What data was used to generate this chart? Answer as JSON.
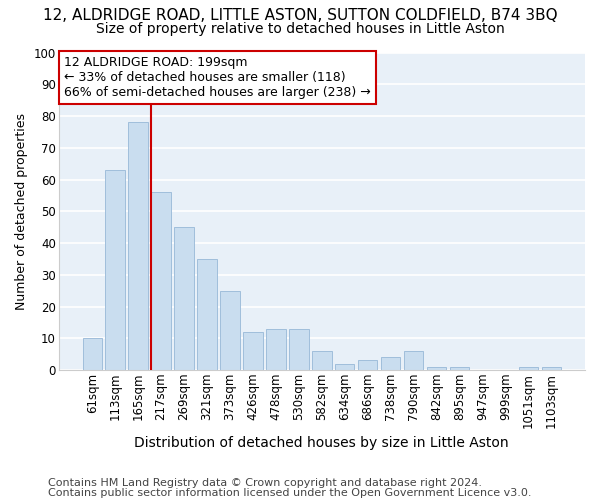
{
  "title": "12, ALDRIDGE ROAD, LITTLE ASTON, SUTTON COLDFIELD, B74 3BQ",
  "subtitle": "Size of property relative to detached houses in Little Aston",
  "xlabel": "Distribution of detached houses by size in Little Aston",
  "ylabel": "Number of detached properties",
  "bar_labels": [
    "61sqm",
    "113sqm",
    "165sqm",
    "217sqm",
    "269sqm",
    "321sqm",
    "373sqm",
    "426sqm",
    "478sqm",
    "530sqm",
    "582sqm",
    "634sqm",
    "686sqm",
    "738sqm",
    "790sqm",
    "842sqm",
    "895sqm",
    "947sqm",
    "999sqm",
    "1051sqm",
    "1103sqm"
  ],
  "bar_values": [
    10,
    63,
    78,
    56,
    45,
    35,
    25,
    12,
    13,
    13,
    6,
    2,
    3,
    4,
    6,
    1,
    1,
    0,
    0,
    1,
    1
  ],
  "bar_color": "#c9ddef",
  "bar_edge_color": "#a0bedb",
  "fig_background": "#ffffff",
  "ax_background": "#e8f0f8",
  "grid_color": "#ffffff",
  "ylim": [
    0,
    100
  ],
  "yticks": [
    0,
    10,
    20,
    30,
    40,
    50,
    60,
    70,
    80,
    90,
    100
  ],
  "property_line_x": 2.58,
  "annotation_line1": "12 ALDRIDGE ROAD: 199sqm",
  "annotation_line2": "← 33% of detached houses are smaller (118)",
  "annotation_line3": "66% of semi-detached houses are larger (238) →",
  "annotation_box_facecolor": "#ffffff",
  "annotation_box_edgecolor": "#cc0000",
  "footnote1": "Contains HM Land Registry data © Crown copyright and database right 2024.",
  "footnote2": "Contains public sector information licensed under the Open Government Licence v3.0.",
  "title_fontsize": 11,
  "subtitle_fontsize": 10,
  "xlabel_fontsize": 10,
  "ylabel_fontsize": 9,
  "tick_fontsize": 8.5,
  "annotation_fontsize": 9,
  "footnote_fontsize": 8
}
